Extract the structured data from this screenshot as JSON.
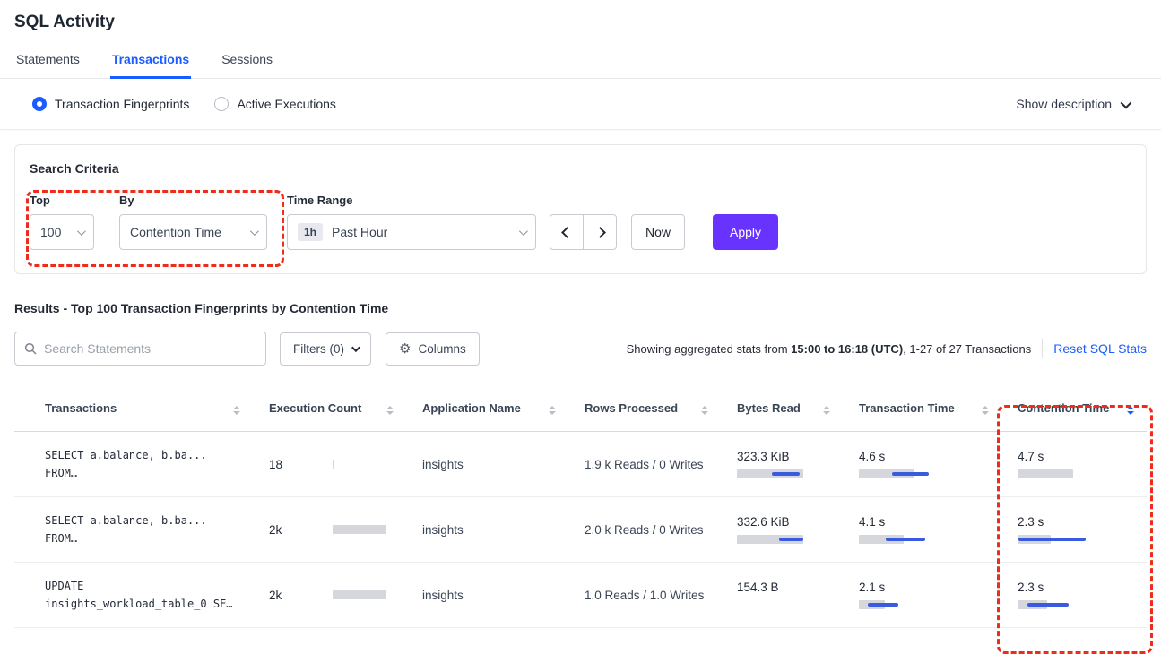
{
  "page_title": "SQL Activity",
  "tabs": {
    "statements": "Statements",
    "transactions": "Transactions",
    "sessions": "Sessions"
  },
  "toggle": {
    "fingerprints": {
      "label": "Transaction Fingerprints",
      "selected": true
    },
    "active_executions": {
      "label": "Active Executions",
      "selected": false
    },
    "show_description": "Show description"
  },
  "criteria": {
    "title": "Search Criteria",
    "top_label": "Top",
    "top_value": "100",
    "by_label": "By",
    "by_value": "Contention Time",
    "time_range_label": "Time Range",
    "time_badge": "1h",
    "time_value": "Past Hour",
    "now": "Now",
    "apply": "Apply"
  },
  "results": {
    "heading": "Results - Top 100 Transaction Fingerprints by Contention Time",
    "search_placeholder": "Search Statements",
    "filters": "Filters (0)",
    "columns": "Columns",
    "stats_prefix": "Showing aggregated stats from ",
    "stats_range": "15:00 to 16:18 (UTC)",
    "stats_suffix": ", 1-27 of 27 Transactions",
    "reset": "Reset SQL Stats"
  },
  "table": {
    "columns": [
      {
        "label": "Transactions",
        "sorted": false
      },
      {
        "label": "Execution Count",
        "sorted": false
      },
      {
        "label": "Application Name",
        "sorted": false
      },
      {
        "label": "Rows Processed",
        "sorted": false
      },
      {
        "label": "Bytes Read",
        "sorted": false
      },
      {
        "label": "Transaction Time",
        "sorted": false
      },
      {
        "label": "Contention Time",
        "sorted": true
      }
    ],
    "rows": [
      {
        "sql_line1": "SELECT a.balance, b.ba...",
        "sql_line2": "FROM…",
        "exec_count": "18",
        "exec_bar": 2,
        "app_name": "insights",
        "rows_processed": "1.9 k Reads / 0 Writes",
        "bytes_read": "323.3 KiB",
        "bytes_bar": 95,
        "bytes_line": [
          50,
          90
        ],
        "txn_time": "4.6 s",
        "txn_bar": 79,
        "txn_line": [
          48,
          100
        ],
        "contention_time": "4.7 s",
        "cont_bar": 79,
        "cont_line": null
      },
      {
        "sql_line1": "SELECT a.balance, b.ba...",
        "sql_line2": "FROM…",
        "exec_count": "2k",
        "exec_bar": 85,
        "app_name": "insights",
        "rows_processed": "2.0 k Reads / 0 Writes",
        "bytes_read": "332.6 KiB",
        "bytes_bar": 95,
        "bytes_line": [
          60,
          95
        ],
        "txn_time": "4.1 s",
        "txn_bar": 64,
        "txn_line": [
          38,
          95
        ],
        "contention_time": "2.3 s",
        "cont_bar": 47,
        "cont_line": [
          1,
          97
        ]
      },
      {
        "sql_line1": "UPDATE",
        "sql_line2": "insights_workload_table_0 SE…",
        "exec_count": "2k",
        "exec_bar": 85,
        "app_name": "insights",
        "rows_processed": "1.0 Reads / 1.0 Writes",
        "bytes_read": "154.3 B",
        "bytes_bar": 0,
        "bytes_line": null,
        "txn_time": "2.1 s",
        "txn_bar": 37,
        "txn_line": [
          13,
          56
        ],
        "contention_time": "2.3 s",
        "cont_bar": 42,
        "cont_line": [
          14,
          73
        ]
      }
    ]
  },
  "colors": {
    "accent_blue": "#1a5cff",
    "apply_purple": "#6933ff",
    "annotation_red": "#ee2c1c",
    "bar_gray": "#d5d7dd",
    "bar_blue": "#3a5adf"
  }
}
